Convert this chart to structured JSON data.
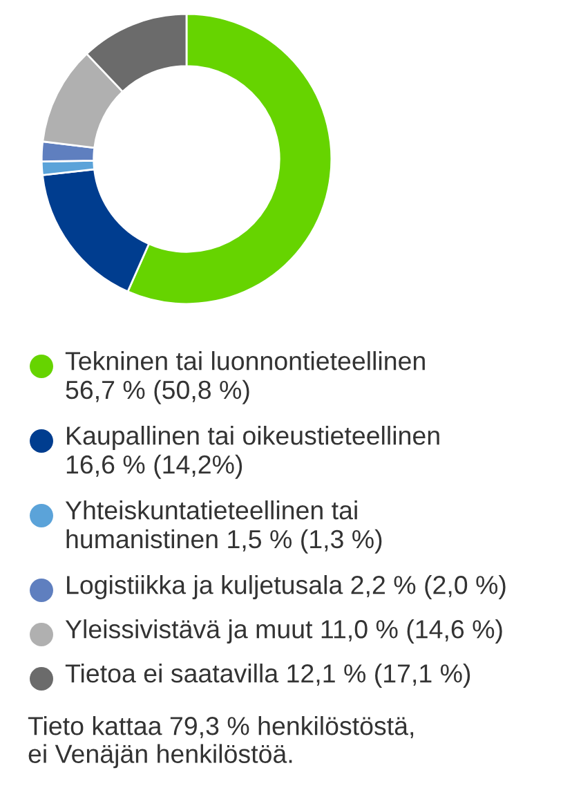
{
  "chart_data": {
    "type": "donut",
    "categories": [
      "Tekninen tai luonnontieteellinen\n56,7 % (50,8 %)",
      "Kaupallinen tai oikeustieteellinen\n16,6 % (14,2%)",
      "Yhteiskuntatieteellinen tai\nhumanistinen 1,5 % (1,3 %)",
      "Logistiikka ja kuljetusala 2,2 % (2,0 %)",
      "Yleissivistävä ja muut 11,0 % (14,6 %)",
      "Tietoa ei saatavilla 12,1 % (17,1 %)"
    ],
    "values": [
      56.7,
      16.6,
      1.5,
      2.2,
      11.0,
      12.1
    ],
    "colors": [
      "#66d400",
      "#003d8f",
      "#5ba3d9",
      "#5f7fbf",
      "#b0b0b0",
      "#6b6b6b"
    ],
    "legend": "bottom",
    "annotations": [
      "Tieto kattaa 79,3 % henkilöstöstä,\nei Venäjän henkilöstöä."
    ]
  }
}
